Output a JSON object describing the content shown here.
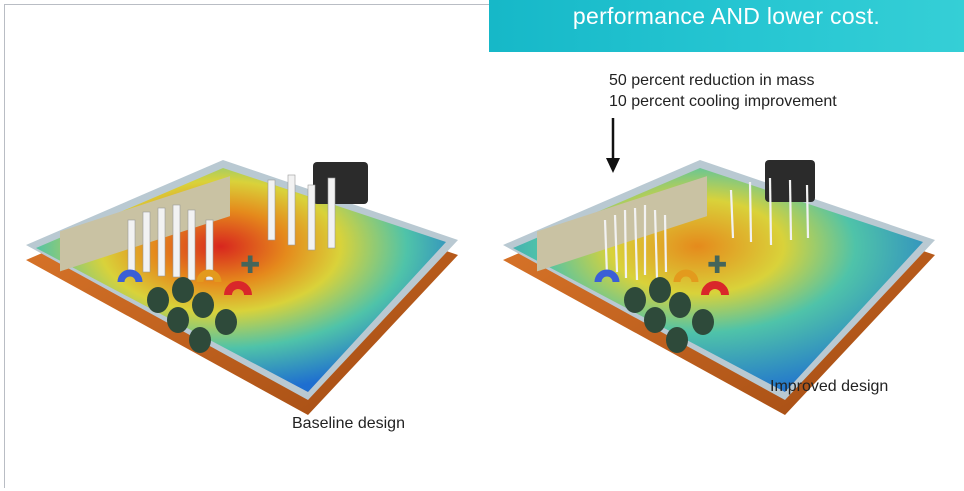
{
  "banner": {
    "text": "performance AND lower cost."
  },
  "notes": {
    "line1": "50 percent reduction in mass",
    "line2": "10 percent cooling improvement"
  },
  "captions": {
    "baseline": "Baseline design",
    "improved": "Improved design"
  },
  "colors": {
    "banner": "#1fbfcc",
    "copper": "#c8631e",
    "board_cool": "#2a9fd6",
    "board_hot": "#d8261e",
    "pins": "#f2f2f2",
    "capacitors": "#2e4a3a",
    "box": "#c9c2a3"
  }
}
